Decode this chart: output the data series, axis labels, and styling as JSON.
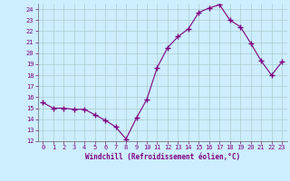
{
  "x": [
    0,
    1,
    2,
    3,
    4,
    5,
    6,
    7,
    8,
    9,
    10,
    11,
    12,
    13,
    14,
    15,
    16,
    17,
    18,
    19,
    20,
    21,
    22,
    23
  ],
  "y": [
    15.5,
    15.0,
    15.0,
    14.9,
    14.9,
    14.4,
    13.9,
    13.3,
    12.2,
    14.1,
    15.8,
    18.7,
    20.5,
    21.5,
    22.2,
    23.7,
    24.1,
    24.4,
    23.0,
    22.4,
    20.9,
    19.3,
    18.0,
    19.2
  ],
  "line_color": "#800080",
  "marker": "+",
  "marker_size": 4,
  "bg_color": "#cceeff",
  "grid_color": "#aacccc",
  "xlabel": "Windchill (Refroidissement éolien,°C)",
  "xlabel_color": "#800080",
  "tick_color": "#800080",
  "ylim": [
    12,
    24.5
  ],
  "xlim": [
    -0.5,
    23.5
  ],
  "yticks": [
    12,
    13,
    14,
    15,
    16,
    17,
    18,
    19,
    20,
    21,
    22,
    23,
    24
  ],
  "xticks": [
    0,
    1,
    2,
    3,
    4,
    5,
    6,
    7,
    8,
    9,
    10,
    11,
    12,
    13,
    14,
    15,
    16,
    17,
    18,
    19,
    20,
    21,
    22,
    23
  ]
}
